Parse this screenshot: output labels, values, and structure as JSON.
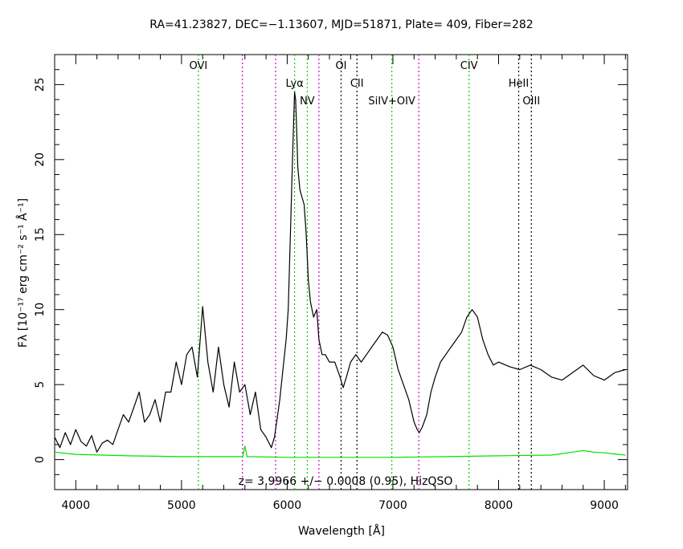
{
  "chart_data": {
    "type": "line",
    "title": "RA=41.23827, DEC=−1.13607, MJD=51871, Plate= 409, Fiber=282",
    "xlabel": "Wavelength [Å]",
    "ylabel": "Fλ [10⁻¹⁷ erg cm⁻² s⁻¹ Å⁻¹]",
    "xlim": [
      3800,
      9220
    ],
    "ylim": [
      -2,
      27
    ],
    "xticks": [
      4000,
      5000,
      6000,
      7000,
      8000,
      9000
    ],
    "yticks": [
      0,
      5,
      10,
      15,
      20,
      25
    ],
    "annotation": "z= 3.9966 +/− 0.0008 (0.95), HizQSO",
    "series": [
      {
        "color": "#000000",
        "x": [
          3800,
          3850,
          3900,
          3950,
          4000,
          4050,
          4100,
          4150,
          4200,
          4250,
          4300,
          4350,
          4400,
          4450,
          4500,
          4550,
          4600,
          4650,
          4700,
          4750,
          4800,
          4850,
          4900,
          4950,
          5000,
          5050,
          5100,
          5150,
          5200,
          5250,
          5300,
          5350,
          5400,
          5450,
          5500,
          5550,
          5600,
          5650,
          5700,
          5750,
          5800,
          5850,
          5880,
          5900,
          5930,
          5960,
          5990,
          6010,
          6030,
          6050,
          6070,
          6080,
          6090,
          6100,
          6120,
          6140,
          6160,
          6180,
          6200,
          6220,
          6250,
          6280,
          6300,
          6330,
          6360,
          6400,
          6450,
          6500,
          6530,
          6560,
          6600,
          6650,
          6700,
          6750,
          6800,
          6850,
          6900,
          6950,
          7000,
          7050,
          7100,
          7150,
          7200,
          7230,
          7250,
          7280,
          7320,
          7360,
          7400,
          7450,
          7500,
          7550,
          7600,
          7650,
          7700,
          7750,
          7800,
          7850,
          7900,
          7950,
          8000,
          8100,
          8200,
          8300,
          8400,
          8500,
          8600,
          8700,
          8800,
          8900,
          9000,
          9100,
          9200
        ],
        "y": [
          1.5,
          0.8,
          1.8,
          1.0,
          2.0,
          1.2,
          0.9,
          1.6,
          0.5,
          1.1,
          1.3,
          1.0,
          2.0,
          3.0,
          2.5,
          3.5,
          4.5,
          2.5,
          3.0,
          4.0,
          2.5,
          4.5,
          4.5,
          6.5,
          5.0,
          7.0,
          7.5,
          5.5,
          10.2,
          6.5,
          4.5,
          7.5,
          5.0,
          3.5,
          6.5,
          4.5,
          5.0,
          3.0,
          4.5,
          2.0,
          1.5,
          0.8,
          1.5,
          2.5,
          4.0,
          6.0,
          8.0,
          10.0,
          15.0,
          20.0,
          24.5,
          24.0,
          22.0,
          19.5,
          18.0,
          17.5,
          17.0,
          15.0,
          12.0,
          10.5,
          9.5,
          10.0,
          8.0,
          7.0,
          7.0,
          6.5,
          6.5,
          5.5,
          4.8,
          5.5,
          6.5,
          7.0,
          6.5,
          7.0,
          7.5,
          8.0,
          8.5,
          8.3,
          7.5,
          6.0,
          5.0,
          4.0,
          2.5,
          2.0,
          1.8,
          2.2,
          3.0,
          4.5,
          5.5,
          6.5,
          7.0,
          7.5,
          8.0,
          8.5,
          9.5,
          10.0,
          9.5,
          8.0,
          7.0,
          6.3,
          6.5,
          6.2,
          6.0,
          6.3,
          6.0,
          5.5,
          5.3,
          5.8,
          6.3,
          5.6,
          5.3,
          5.8,
          6.0
        ]
      },
      {
        "color": "#00e000",
        "x": [
          3800,
          4000,
          4500,
          5000,
          5500,
          5580,
          5600,
          5620,
          6000,
          6500,
          7000,
          7500,
          8000,
          8500,
          8700,
          8800,
          8900,
          9000,
          9200
        ],
        "y": [
          0.5,
          0.35,
          0.25,
          0.2,
          0.2,
          0.2,
          0.9,
          0.2,
          0.15,
          0.15,
          0.15,
          0.2,
          0.25,
          0.3,
          0.5,
          0.6,
          0.5,
          0.45,
          0.3
        ]
      }
    ],
    "lines": [
      {
        "label": "OVI",
        "x": 5160,
        "color": "#00cc00"
      },
      {
        "label": "",
        "x": 5577,
        "color": "#cc00cc"
      },
      {
        "label": "",
        "x": 5890,
        "color": "#cc00cc"
      },
      {
        "label": "Lyα",
        "x": 6070,
        "color": "#00cc00"
      },
      {
        "label": "NV",
        "x": 6190,
        "color": "#00cc00"
      },
      {
        "label": "",
        "x": 6300,
        "color": "#cc00cc"
      },
      {
        "label": "OI",
        "x": 6510,
        "color": "#000000"
      },
      {
        "label": "CII",
        "x": 6660,
        "color": "#000000"
      },
      {
        "label": "SiIV+OIV",
        "x": 6990,
        "color": "#00cc00"
      },
      {
        "label": "",
        "x": 7245,
        "color": "#cc00cc"
      },
      {
        "label": "CIV",
        "x": 7720,
        "color": "#00cc00"
      },
      {
        "label": "HeII",
        "x": 8190,
        "color": "#000000"
      },
      {
        "label": "OIII",
        "x": 8310,
        "color": "#000000"
      }
    ]
  }
}
